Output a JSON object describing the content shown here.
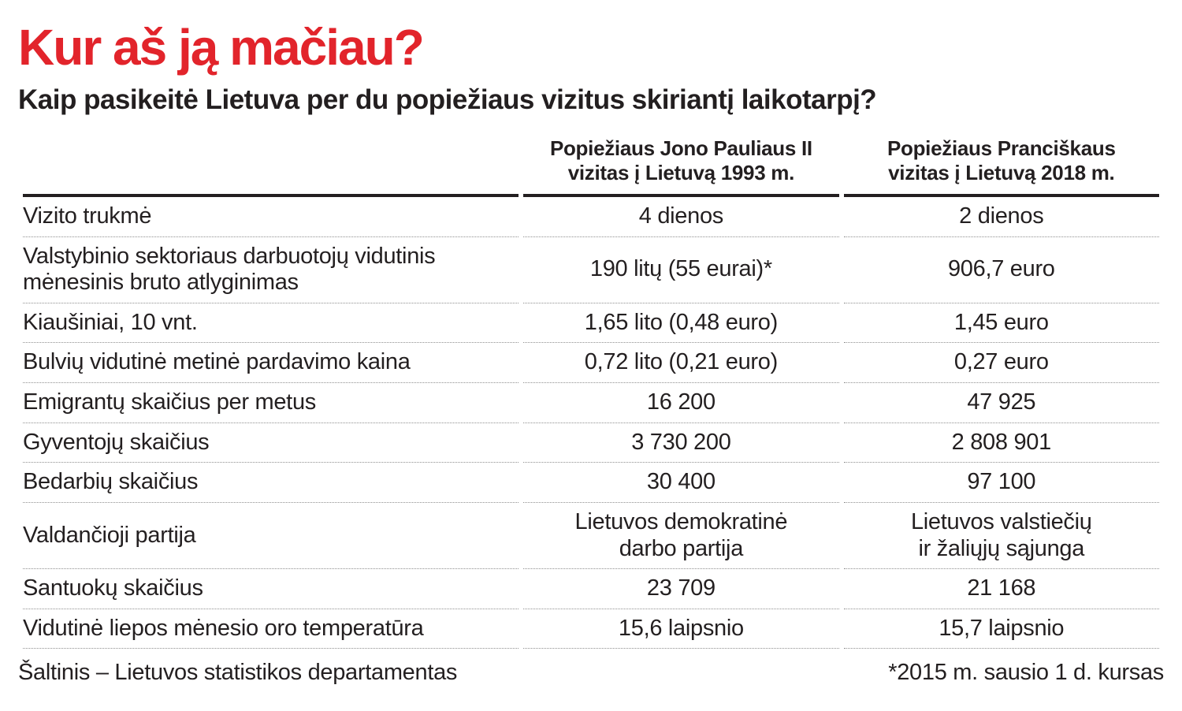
{
  "title": "Kur aš ją mačiau?",
  "subtitle": "Kaip pasikeitė Lietuva per du popiežiaus vizitus skiriantį laikotarpį?",
  "colors": {
    "accent_red": "#e2242b",
    "text": "#231f20",
    "divider_gray": "#8f8f8f"
  },
  "chart_data": {
    "type": "table",
    "title": "Kur aš ją mačiau?",
    "subtitle": "Kaip pasikeitė Lietuva per du popiežiaus vizitus skiriantį laikotarpį?",
    "columns": [
      {
        "line1": "Popiežiaus Jono Pauliaus II",
        "line2": "vizitas į Lietuvą 1993 m."
      },
      {
        "line1": "Popiežiaus Pranciškaus",
        "line2": "vizitas į Lietuvą 2018 m."
      }
    ],
    "rows": [
      {
        "label": "Vizito trukmė",
        "v1993": "4 dienos",
        "v2018": "2 dienos"
      },
      {
        "label": "Valstybinio sektoriaus darbuotojų vidutinis mėnesinis bruto atlyginimas",
        "v1993": "190 litų (55 eurai)*",
        "v2018": "906,7 euro"
      },
      {
        "label": "Kiaušiniai, 10 vnt.",
        "v1993": "1,65 lito (0,48 euro)",
        "v2018": "1,45 euro"
      },
      {
        "label": "Bulvių vidutinė metinė pardavimo kaina",
        "v1993": "0,72 lito (0,21 euro)",
        "v2018": "0,27 euro"
      },
      {
        "label": "Emigrantų skaičius per metus",
        "v1993": "16 200",
        "v2018": "47 925"
      },
      {
        "label": "Gyventojų skaičius",
        "v1993": "3 730 200",
        "v2018": "2 808 901"
      },
      {
        "label": "Bedarbių skaičius",
        "v1993": "30 400",
        "v2018": "97 100"
      },
      {
        "label": "Valdančioji partija",
        "v1993_line1": "Lietuvos demokratinė",
        "v1993_line2": "darbo partija",
        "v2018_line1": "Lietuvos valstiečių",
        "v2018_line2": "ir žaliųjų sąjunga"
      },
      {
        "label": "Santuokų skaičius",
        "v1993": "23 709",
        "v2018": "21 168"
      },
      {
        "label": "Vidutinė liepos mėnesio oro temperatūra",
        "v1993": "15,6 laipsnio",
        "v2018": "15,7 laipsnio"
      }
    ]
  },
  "footer": {
    "source": "Šaltinis – Lietuvos statistikos departamentas",
    "note": "*2015 m. sausio 1 d. kursas"
  }
}
